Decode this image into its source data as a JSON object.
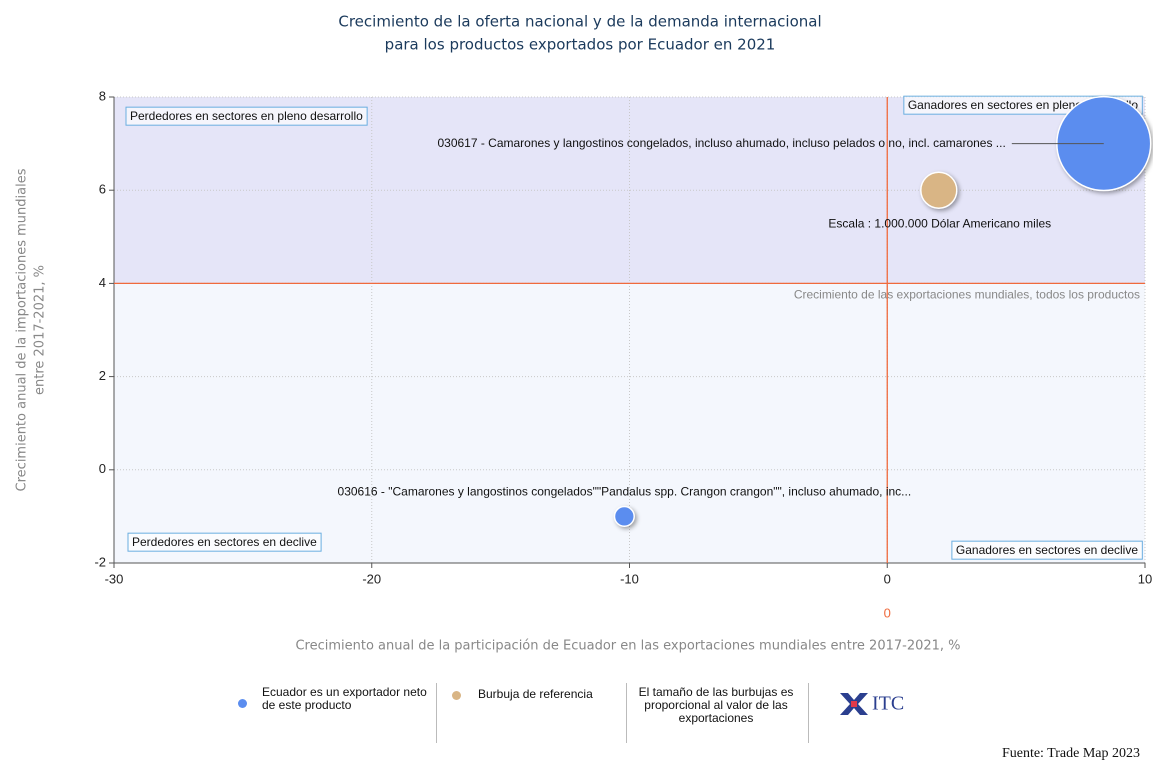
{
  "chart_data": {
    "type": "bubble",
    "title": [
      "Crecimiento de la oferta nacional y de la demanda internacional",
      "para los productos exportados por Ecuador en 2021"
    ],
    "xlabel": "Crecimiento anual de la participación de Ecuador en las exportaciones mundiales entre 2017-2021, %",
    "ylabel": [
      "Crecimiento anual de la importaciones mundiales",
      "entre 2017-2021, %"
    ],
    "xlim": [
      -30,
      10
    ],
    "xticks": [
      -30,
      -20,
      -10,
      0,
      10
    ],
    "ylim": [
      -2,
      8
    ],
    "yticks": [
      -2,
      0,
      2,
      4,
      6,
      8
    ],
    "grid": true,
    "quadrant_labels": [
      "Perdedores en sectores en pleno desarrollo",
      "Ganadores en sectores en pleno desarrollo",
      "Perdedores en sectores en declive",
      "Ganadores en sectores en declive"
    ],
    "x_reference": {
      "value": 0,
      "label": "0"
    },
    "y_reference": {
      "value": 4,
      "label": "Crecimiento de las exportaciones mundiales, todos los productos"
    },
    "series": [
      {
        "name": "Ecuador es un exportador neto de este producto",
        "color": "#5b8def",
        "x": [
          8.4,
          -10.2
        ],
        "values": [
          7,
          -1
        ],
        "sizes": [
          6800000,
          300000
        ],
        "labels": [
          "030617 - Camarones y langostinos congelados, incluso ahumado, incluso pelados o no, incl. camarones ...",
          "030616 - \"Camarones y langostinos  congelados\"\"Pandalus spp. Crangon crangon\"\", incluso ahumado, inc..."
        ]
      }
    ],
    "reference_bubble": {
      "name": "Burbuja de referencia",
      "color": "#d9b585",
      "x": 2,
      "value": 6,
      "size": 1000000,
      "label": "Escala : 1.000.000 Dólar Americano miles"
    },
    "size_note": "El tamaño de las burbujas es proporcional al valor de las exportaciones",
    "logo": "ITC",
    "source": "Fuente: Trade Map 2023"
  }
}
